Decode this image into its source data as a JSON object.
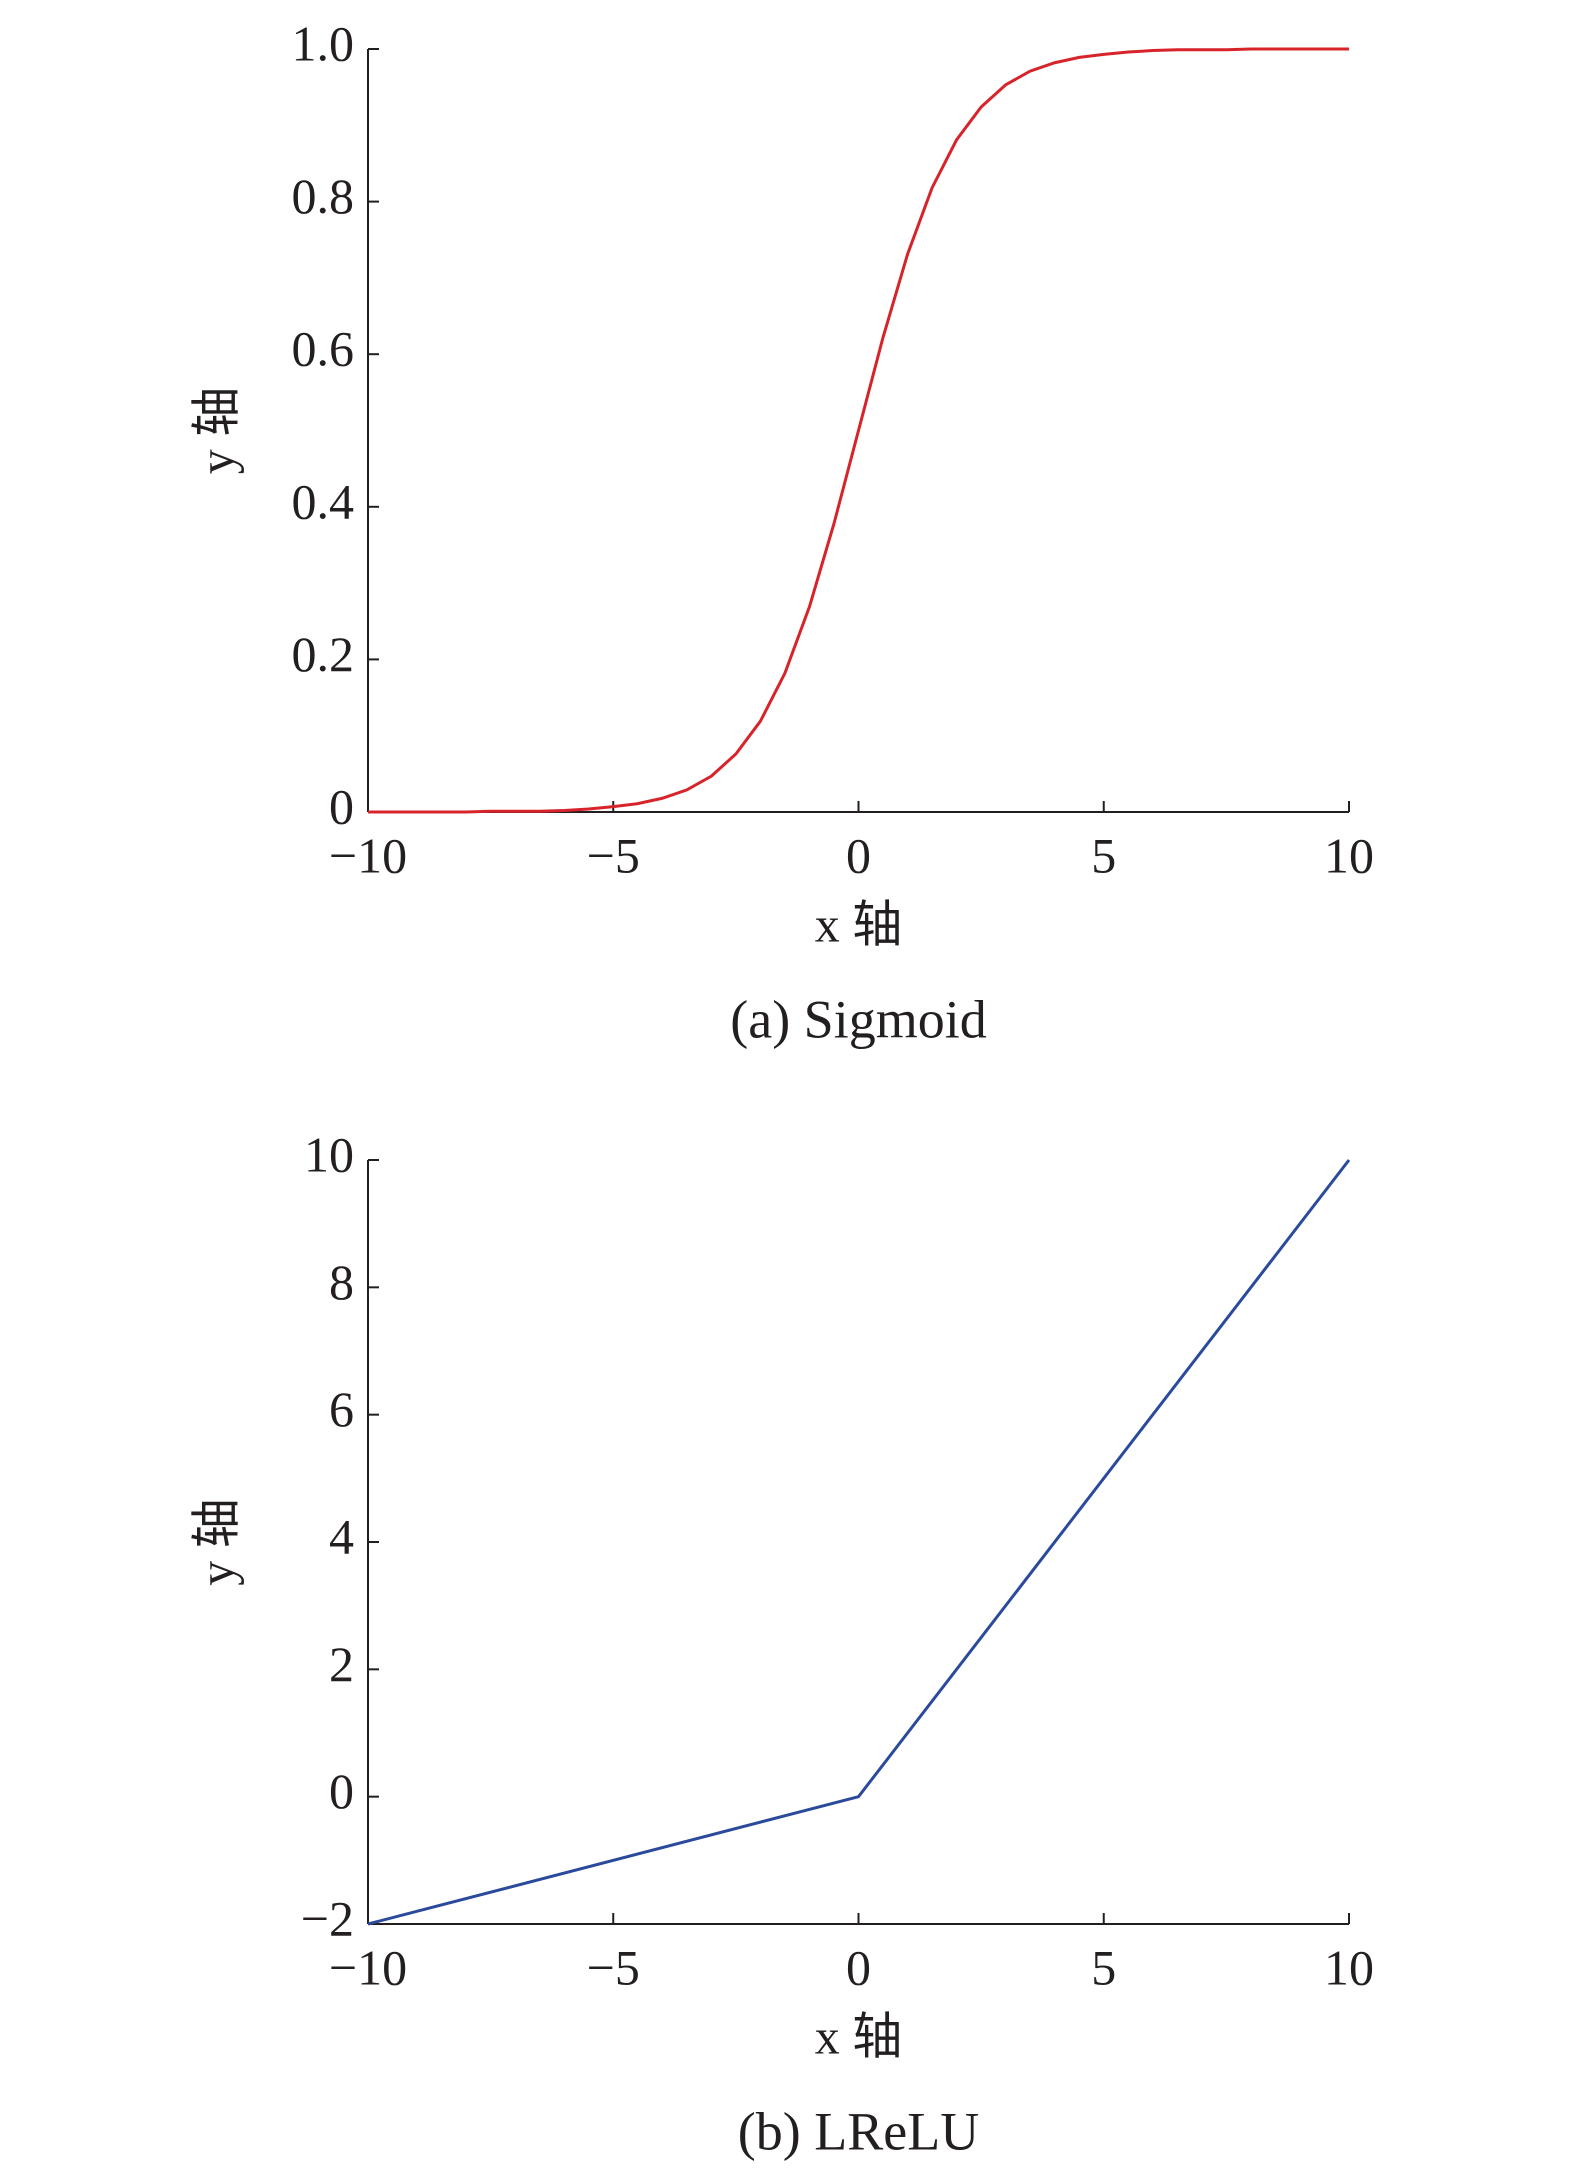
{
  "chart_data": [
    {
      "type": "line",
      "caption": "(a) Sigmoid",
      "xlabel": "x 轴",
      "ylabel": "y 轴",
      "x": [
        -10,
        -9.5,
        -9,
        -8.5,
        -8,
        -7.5,
        -7,
        -6.5,
        -6,
        -5.5,
        -5,
        -4.5,
        -4,
        -3.5,
        -3,
        -2.5,
        -2,
        -1.5,
        -1,
        -0.5,
        0,
        0.5,
        1,
        1.5,
        2,
        2.5,
        3,
        3.5,
        4,
        4.5,
        5,
        5.5,
        6,
        6.5,
        7,
        7.5,
        8,
        8.5,
        9,
        9.5,
        10
      ],
      "series": [
        {
          "color": "#d7242b",
          "values": [
            0,
            0,
            0,
            0,
            0,
            0.001,
            0.001,
            0.001,
            0.002,
            0.004,
            0.007,
            0.011,
            0.018,
            0.029,
            0.047,
            0.076,
            0.119,
            0.182,
            0.269,
            0.378,
            0.5,
            0.622,
            0.731,
            0.818,
            0.881,
            0.924,
            0.953,
            0.971,
            0.982,
            0.989,
            0.993,
            0.996,
            0.998,
            0.999,
            0.999,
            0.999,
            1,
            1,
            1,
            1,
            1
          ]
        }
      ],
      "xlim": [
        -10,
        10
      ],
      "xticks": [
        {
          "value": -10,
          "label": "−10"
        },
        {
          "value": -5,
          "label": "−5"
        },
        0,
        5,
        10
      ],
      "ylim": [
        0,
        1
      ],
      "yticks": [
        0,
        0.2,
        0.4,
        0.6,
        0.8,
        {
          "value": 1,
          "label": "1.0"
        }
      ]
    },
    {
      "type": "line",
      "caption": "(b) LReLU",
      "xlabel": "x 轴",
      "ylabel": "y 轴",
      "x": [
        -10,
        0,
        10
      ],
      "series": [
        {
          "color": "#2b4a9b",
          "values": [
            -2,
            0,
            10
          ]
        }
      ],
      "xlim": [
        -10,
        10
      ],
      "xticks": [
        {
          "value": -10,
          "label": "−10"
        },
        {
          "value": -5,
          "label": "−5"
        },
        0,
        5,
        10
      ],
      "ylim": [
        -2,
        10
      ],
      "yticks": [
        {
          "value": -2,
          "label": "−2"
        },
        0,
        2,
        4,
        6,
        8,
        10
      ]
    }
  ]
}
